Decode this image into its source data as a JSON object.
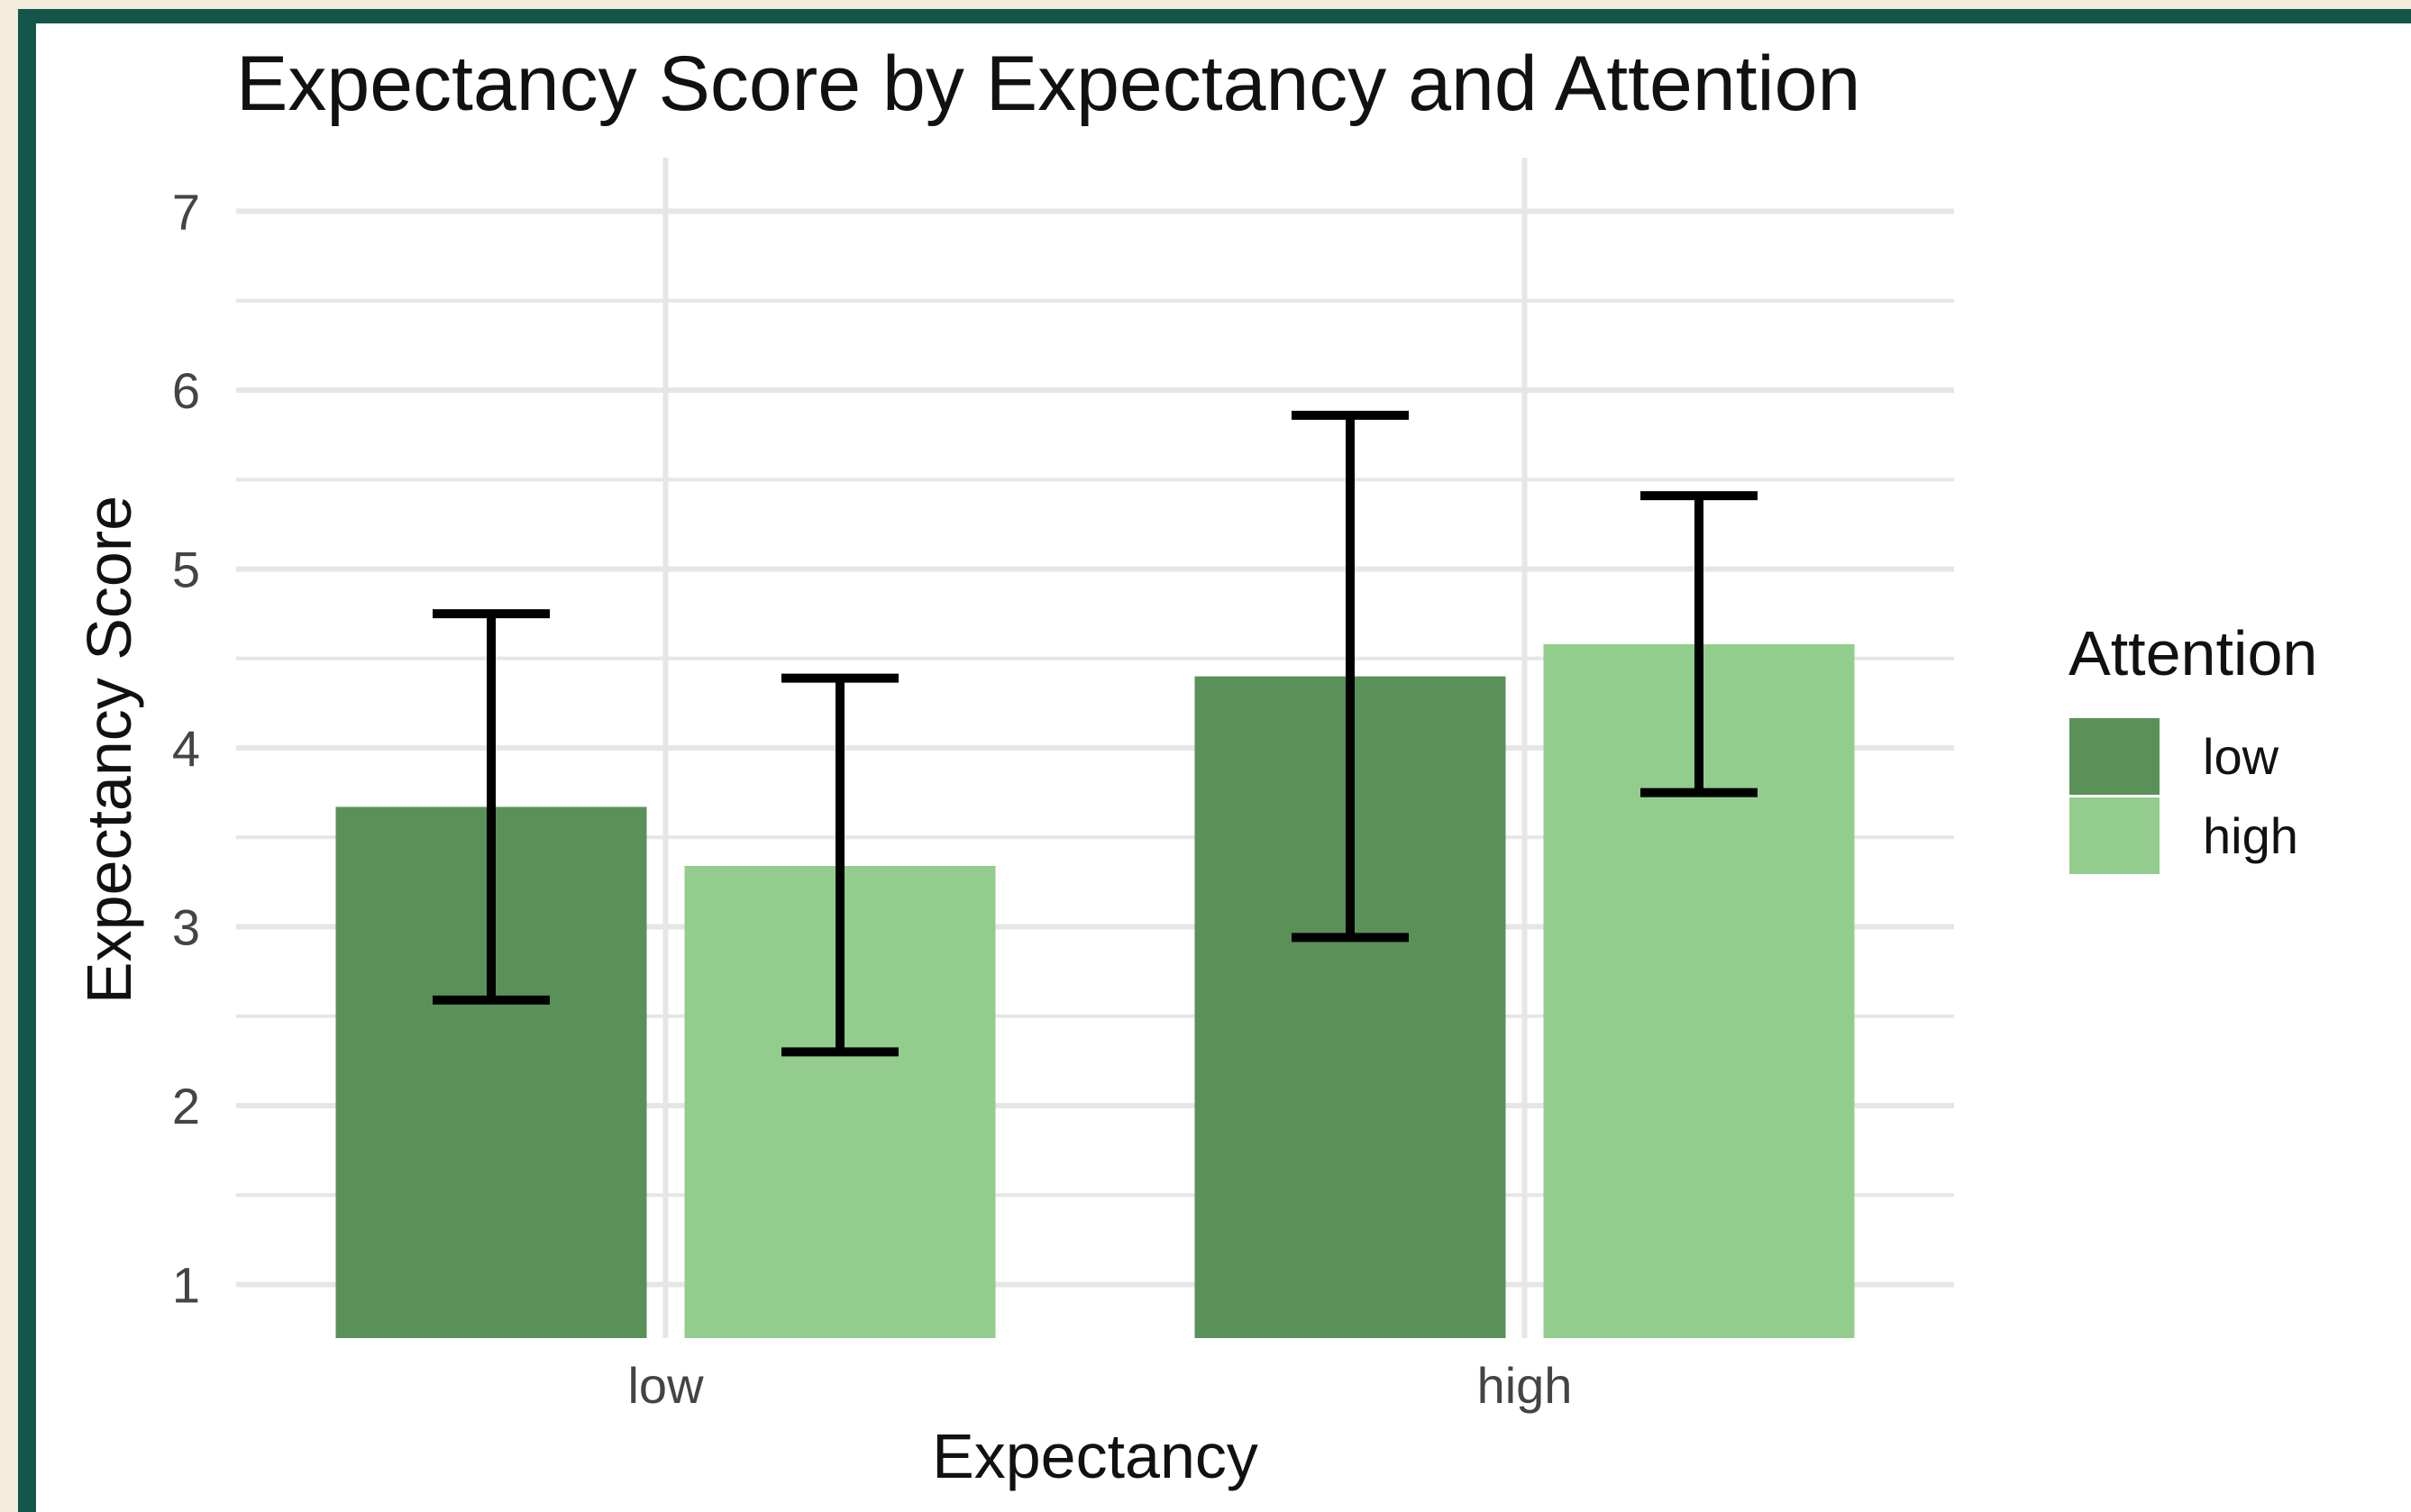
{
  "chart_data": {
    "type": "bar",
    "title": "Expectancy Score by Expectancy and Attention",
    "xlabel": "Expectancy",
    "ylabel": "Expectancy Score",
    "categories": [
      "low",
      "high"
    ],
    "ylim": [
      0.7,
      7.3
    ],
    "yticks": [
      1,
      2,
      3,
      4,
      5,
      6,
      7
    ],
    "grid": true,
    "legend": {
      "title": "Attention",
      "placement": "right"
    },
    "series": [
      {
        "name": "low",
        "color": "#5a9159",
        "values": [
          3.67,
          4.4
        ],
        "error_low": [
          2.59,
          2.94
        ],
        "error_high": [
          4.75,
          5.86
        ]
      },
      {
        "name": "high",
        "color": "#93cd8e",
        "values": [
          3.34,
          4.58
        ],
        "error_low": [
          2.3,
          3.75
        ],
        "error_high": [
          4.39,
          5.41
        ]
      }
    ]
  }
}
